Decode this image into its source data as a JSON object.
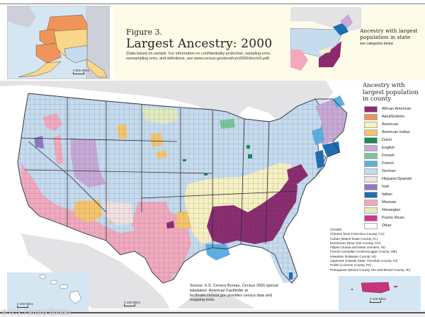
{
  "figure": {
    "label": "Figure 3.",
    "title": "Largest Ancestry: 2000",
    "note": "(Data based on sample. For information on confidentiality protection, sampling error, nonsampling error, and definitions, see www.census.gov/prod/cen2000/doc/sf3.pdf)"
  },
  "state_inset": {
    "title": "Ancestry with largest population in state",
    "subtitle": "see categories below"
  },
  "county_legend": {
    "title": "Ancestry with largest population in county",
    "items": [
      {
        "label": "African American",
        "color": "#8b2a6e"
      },
      {
        "label": "Aleut/Eskimo",
        "color": "#f0955a"
      },
      {
        "label": "American",
        "color": "#f8f1c0"
      },
      {
        "label": "American Indian",
        "color": "#f6c56b"
      },
      {
        "label": "Dutch",
        "color": "#1a8a4e"
      },
      {
        "label": "English",
        "color": "#c8a9d6"
      },
      {
        "label": "Finnish",
        "color": "#7cc49a"
      },
      {
        "label": "French",
        "color": "#5daee0"
      },
      {
        "label": "German",
        "color": "#c6dcee"
      },
      {
        "label": "Hispanic/Spanish",
        "color": "#f4e1e1"
      },
      {
        "label": "Irish",
        "color": "#9179c0"
      },
      {
        "label": "Italian",
        "color": "#1d6db3"
      },
      {
        "label": "Mexican",
        "color": "#f2a9bd"
      },
      {
        "label": "Norwegian",
        "color": "#e3ebbe"
      },
      {
        "label": "Puerto Rican",
        "color": "#d6348c"
      },
      {
        "label": "Other",
        "color": "#ffffff"
      }
    ]
  },
  "other": {
    "heading": "OTHER:",
    "items": [
      "Chinese (San Francisco County, CA)",
      "Cuban (Miami-Dade County, FL)",
      "Dominican (New York County, NY)",
      "Filipino (Kauai and Maui counties, HI)",
      "French Canadian (Androscoggin County, ME)",
      "Hawaiian (Kalawao County, HI)",
      "Japanese (Hawaii State; Honolulu County, HI)",
      "Polish (Luzerne County, PA)",
      "Portuguese (Bristol County, MA and Bristol County, RI)"
    ]
  },
  "source": "Source: U.S. Census Bureau, Census 2000 special tabulation. American Factfinder at factfinder.census.gov provides census data and mapping tools.",
  "scales": {
    "alaska": {
      "zero": "0",
      "label": "500 Miles"
    },
    "hawaii": {
      "zero": "0",
      "label": "100 Miles"
    },
    "mainland": {
      "zero": "0",
      "label": "100 Miles"
    },
    "puerto_rico": {
      "zero": "0",
      "label": "100 Miles"
    }
  },
  "credit": "© U.S. Census Bureau",
  "colors": {
    "ocean": "#ffffff",
    "foreign_land": "#e3e3e6",
    "header_bg": "#fefbe8",
    "inset_water": "#d5e6f3",
    "border": "#3a3a4a"
  }
}
